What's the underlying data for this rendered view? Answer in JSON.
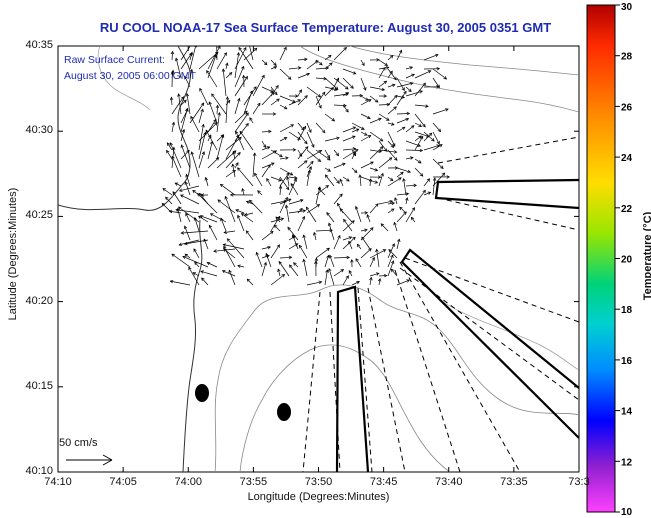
{
  "title": "RU COOL  NOAA-17  Sea Surface Temperature:  August 30, 2005 0351 GMT",
  "annotation": {
    "line1": "Raw Surface Current:",
    "line2": "August 30, 2005 06:00 GMT"
  },
  "scale": {
    "label": "50 cm/s"
  },
  "axes": {
    "xlabel": "Longitude (Degrees:Minutes)",
    "ylabel": "Latitude (Degrees:Minutes)",
    "xticks": [
      "74:10",
      "74:05",
      "74:00",
      "73:55",
      "73:50",
      "73:45",
      "73:40",
      "73:35",
      "73:3"
    ],
    "yticks": [
      "40:35",
      "40:30",
      "40:25",
      "40:20",
      "40:15",
      "40:10"
    ]
  },
  "colorbar": {
    "title": "Temperature (°C)",
    "ticks": [
      "30",
      "28",
      "26",
      "24",
      "22",
      "20",
      "18",
      "16",
      "14",
      "12",
      "10"
    ],
    "colors": [
      "#b00000",
      "#ff2a00",
      "#ff8c00",
      "#ffdd00",
      "#99e600",
      "#00d27a",
      "#00d0d0",
      "#008cff",
      "#0000ff",
      "#9020d0",
      "#ff40ff"
    ]
  }
}
